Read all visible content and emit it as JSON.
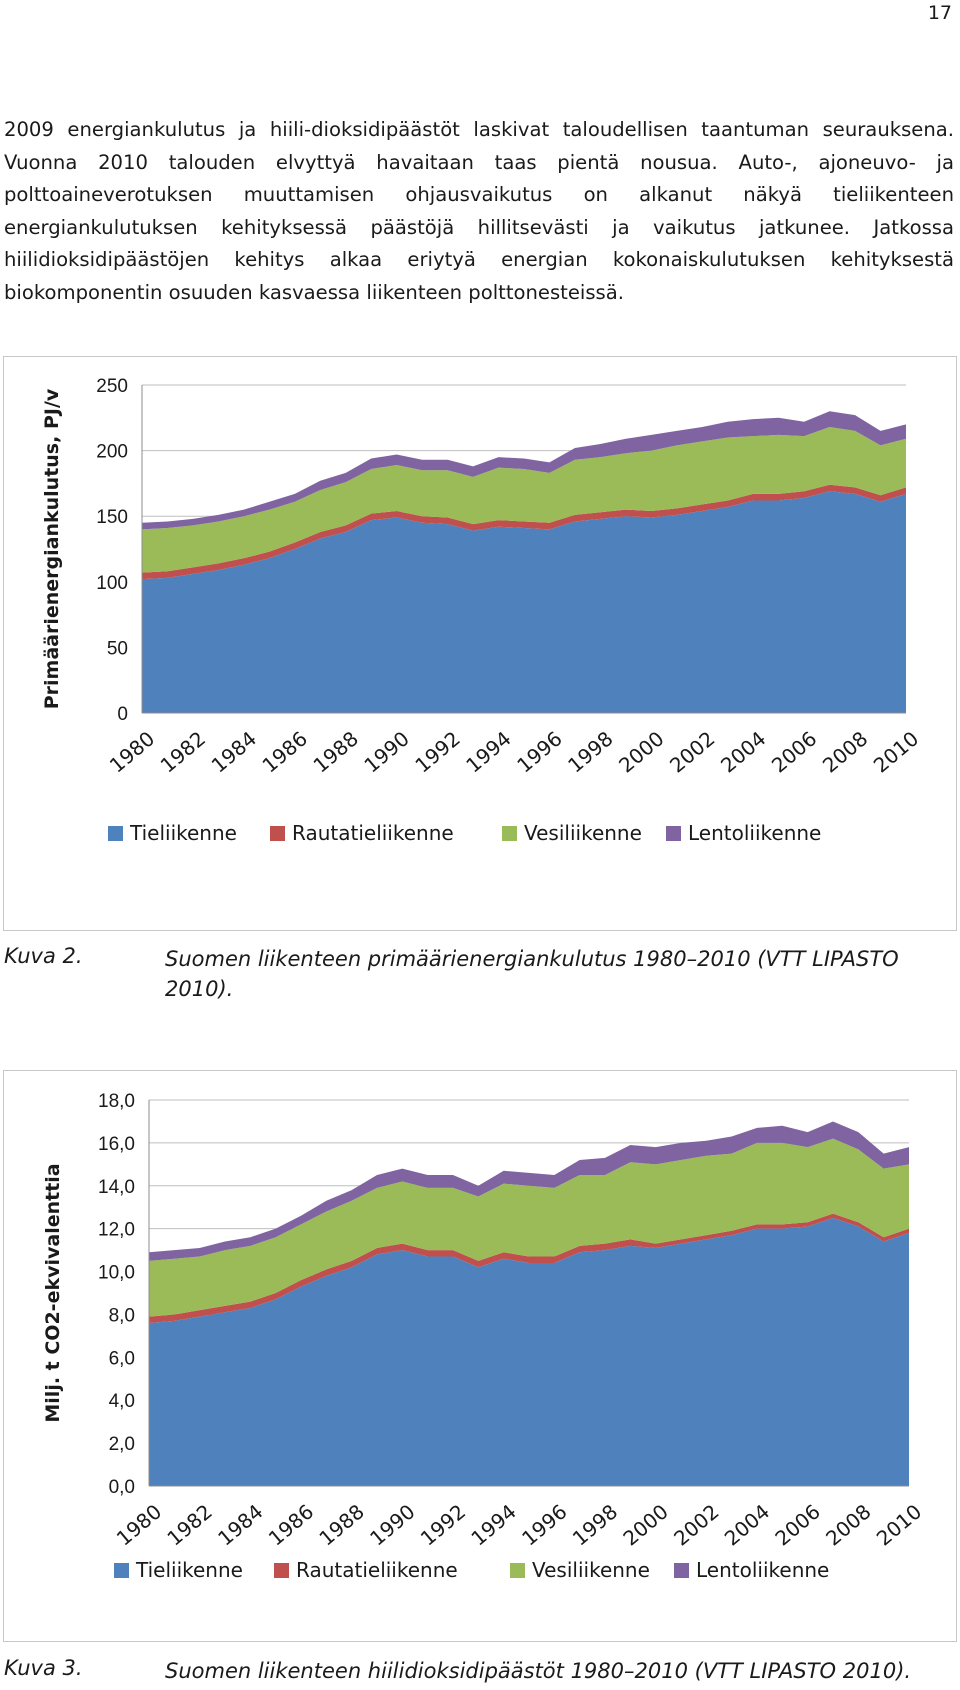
{
  "page_number": "17",
  "intro_text": "2009 energiankulutus ja hiili-dioksidipäästöt laskivat taloudellisen taantuman seurauksena. Vuonna 2010 talouden elvyttyä havaitaan taas pientä nousua. Auto-, ajoneuvo- ja polttoaineverotuksen muuttamisen ohjausvaikutus on alkanut näkyä tieliikenteen energiankulutuksen kehityksessä päästöjä hillitsevästi ja vaikutus jatkunee. Jatkossa hiilidioksidipäästöjen kehitys alkaa eriytyä energian kokonaiskulutuksen kehityksestä biokomponentin osuuden kasvaessa liikenteen polttonesteissä.",
  "figure2": {
    "label": "Kuva 2.",
    "caption": "Suomen liikenteen primäärienergiankulutus 1980–2010 (VTT LIPASTO 2010)."
  },
  "figure3": {
    "label": "Kuva 3.",
    "caption": "Suomen liikenteen hiilidioksidipäästöt 1980–2010 (VTT LIPASTO 2010)."
  },
  "colors": {
    "Tieliikenne": "#4f81bd",
    "Rautatieliikenne": "#c0504d",
    "Vesiliikenne": "#9bbb59",
    "Lentoliikenne": "#8064a2"
  },
  "chart_data": [
    {
      "type": "area",
      "stacked": true,
      "ylabel": "Primäärienergiankulutus, PJ/v",
      "ylim": [
        0,
        250
      ],
      "yticks": [
        "0",
        "50",
        "100",
        "150",
        "200",
        "250"
      ],
      "xtick_labels": [
        "1980",
        "1982",
        "1984",
        "1986",
        "1988",
        "1990",
        "1992",
        "1994",
        "1996",
        "1998",
        "2000",
        "2002",
        "2004",
        "2006",
        "2008",
        "2010"
      ],
      "x": [
        1980,
        1981,
        1982,
        1983,
        1984,
        1985,
        1986,
        1987,
        1988,
        1989,
        1990,
        1991,
        1992,
        1993,
        1994,
        1995,
        1996,
        1997,
        1998,
        1999,
        2000,
        2001,
        2002,
        2003,
        2004,
        2005,
        2006,
        2007,
        2008,
        2009,
        2010
      ],
      "grid": true,
      "legend_position": "bottom",
      "series": [
        {
          "name": "Tieliikenne",
          "values": [
            102,
            103,
            106,
            109,
            113,
            118,
            125,
            133,
            138,
            147,
            149,
            145,
            144,
            139,
            142,
            141,
            140,
            146,
            148,
            150,
            149,
            151,
            154,
            157,
            162,
            162,
            164,
            169,
            167,
            161,
            167
          ]
        },
        {
          "name": "Rautatieliikenne",
          "values": [
            5,
            5,
            5,
            5,
            5,
            5,
            5,
            5,
            5,
            5,
            5,
            5,
            5,
            5,
            5,
            5,
            5,
            5,
            5,
            5,
            5,
            5,
            5,
            5,
            5,
            5,
            5,
            5,
            5,
            5,
            5
          ]
        },
        {
          "name": "Vesiliikenne",
          "values": [
            33,
            33,
            32,
            32,
            32,
            32,
            31,
            32,
            33,
            34,
            35,
            35,
            36,
            36,
            40,
            40,
            38,
            42,
            42,
            43,
            46,
            48,
            48,
            48,
            44,
            45,
            42,
            44,
            43,
            38,
            37
          ]
        },
        {
          "name": "Lentoliikenne",
          "values": [
            5,
            5,
            5,
            5,
            5,
            6,
            6,
            7,
            7,
            8,
            8,
            8,
            8,
            8,
            8,
            8,
            8,
            9,
            10,
            11,
            12,
            11,
            11,
            12,
            13,
            13,
            11,
            12,
            12,
            11,
            11
          ]
        }
      ]
    },
    {
      "type": "area",
      "stacked": true,
      "ylabel": "Milj. t CO2-ekvivalenttia",
      "ylim": [
        0,
        18
      ],
      "yticks": [
        "0,0",
        "2,0",
        "4,0",
        "6,0",
        "8,0",
        "10,0",
        "12,0",
        "14,0",
        "16,0",
        "18,0"
      ],
      "xtick_labels": [
        "1980",
        "1982",
        "1984",
        "1986",
        "1988",
        "1990",
        "1992",
        "1994",
        "1996",
        "1998",
        "2000",
        "2002",
        "2004",
        "2006",
        "2008",
        "2010"
      ],
      "x": [
        1980,
        1981,
        1982,
        1983,
        1984,
        1985,
        1986,
        1987,
        1988,
        1989,
        1990,
        1991,
        1992,
        1993,
        1994,
        1995,
        1996,
        1997,
        1998,
        1999,
        2000,
        2001,
        2002,
        2003,
        2004,
        2005,
        2006,
        2007,
        2008,
        2009,
        2010
      ],
      "grid": true,
      "legend_position": "bottom",
      "series": [
        {
          "name": "Tieliikenne",
          "values": [
            7.6,
            7.7,
            7.9,
            8.1,
            8.3,
            8.7,
            9.3,
            9.8,
            10.2,
            10.8,
            11.0,
            10.7,
            10.7,
            10.2,
            10.6,
            10.4,
            10.4,
            10.9,
            11.0,
            11.2,
            11.1,
            11.3,
            11.5,
            11.7,
            12.0,
            12.0,
            12.1,
            12.5,
            12.1,
            11.4,
            11.8
          ]
        },
        {
          "name": "Rautatieliikenne",
          "values": [
            0.3,
            0.3,
            0.3,
            0.3,
            0.3,
            0.3,
            0.3,
            0.3,
            0.3,
            0.3,
            0.3,
            0.3,
            0.3,
            0.3,
            0.3,
            0.3,
            0.3,
            0.3,
            0.3,
            0.3,
            0.2,
            0.2,
            0.2,
            0.2,
            0.2,
            0.2,
            0.2,
            0.2,
            0.2,
            0.2,
            0.2
          ]
        },
        {
          "name": "Vesiliikenne",
          "values": [
            2.6,
            2.6,
            2.5,
            2.6,
            2.6,
            2.6,
            2.6,
            2.7,
            2.8,
            2.8,
            2.9,
            2.9,
            2.9,
            3.0,
            3.2,
            3.3,
            3.2,
            3.3,
            3.2,
            3.6,
            3.7,
            3.7,
            3.7,
            3.6,
            3.8,
            3.8,
            3.5,
            3.5,
            3.4,
            3.2,
            3.0
          ]
        },
        {
          "name": "Lentoliikenne",
          "values": [
            0.4,
            0.4,
            0.4,
            0.4,
            0.4,
            0.4,
            0.4,
            0.5,
            0.5,
            0.6,
            0.6,
            0.6,
            0.6,
            0.5,
            0.6,
            0.6,
            0.6,
            0.7,
            0.8,
            0.8,
            0.8,
            0.8,
            0.7,
            0.8,
            0.7,
            0.8,
            0.7,
            0.8,
            0.8,
            0.7,
            0.8
          ]
        }
      ]
    }
  ]
}
